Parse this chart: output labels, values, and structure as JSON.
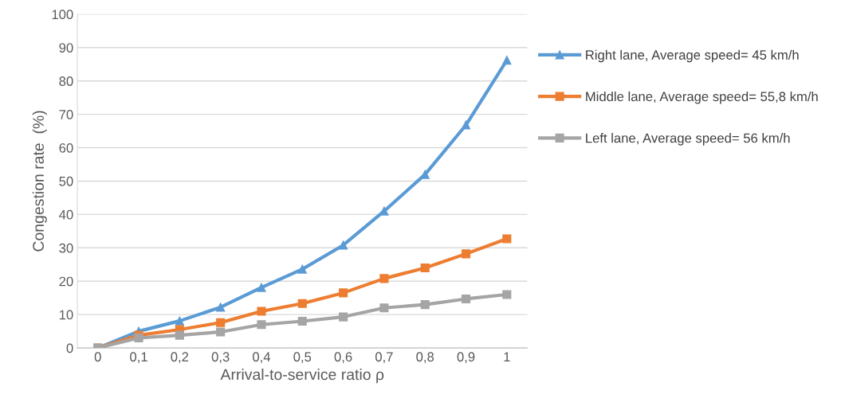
{
  "chart_data": {
    "type": "line",
    "xlabel": "Arrival-to-service ratio ρ",
    "ylabel": "Congestion rate  (%)",
    "categories": [
      "0",
      "0,1",
      "0,2",
      "0,3",
      "0,4",
      "0,5",
      "0,6",
      "0,7",
      "0,8",
      "0,9",
      "1"
    ],
    "series": [
      {
        "name": "Right lane, Average speed= 45 km/h",
        "color": "#5b9bd5",
        "marker": "triangle",
        "values": [
          0,
          5,
          8.1,
          12.2,
          18.1,
          23.6,
          30.8,
          41,
          52,
          66.8,
          86.2
        ]
      },
      {
        "name": "Middle lane, Average speed= 55,8 km/h",
        "color": "#ed7d31",
        "marker": "square",
        "values": [
          0,
          3.8,
          5.5,
          7.6,
          11,
          13.3,
          16.5,
          20.8,
          24,
          28.2,
          32.7
        ]
      },
      {
        "name": "Left lane, Average speed= 56 km/h",
        "color": "#a5a5a5",
        "marker": "square",
        "values": [
          0,
          3,
          3.8,
          4.8,
          7,
          8,
          9.3,
          12,
          13,
          14.7,
          16
        ]
      }
    ],
    "ylim": [
      0,
      100
    ],
    "yticks": [
      0,
      10,
      20,
      30,
      40,
      50,
      60,
      70,
      80,
      90,
      100
    ],
    "grid": "y",
    "legend": "right"
  }
}
